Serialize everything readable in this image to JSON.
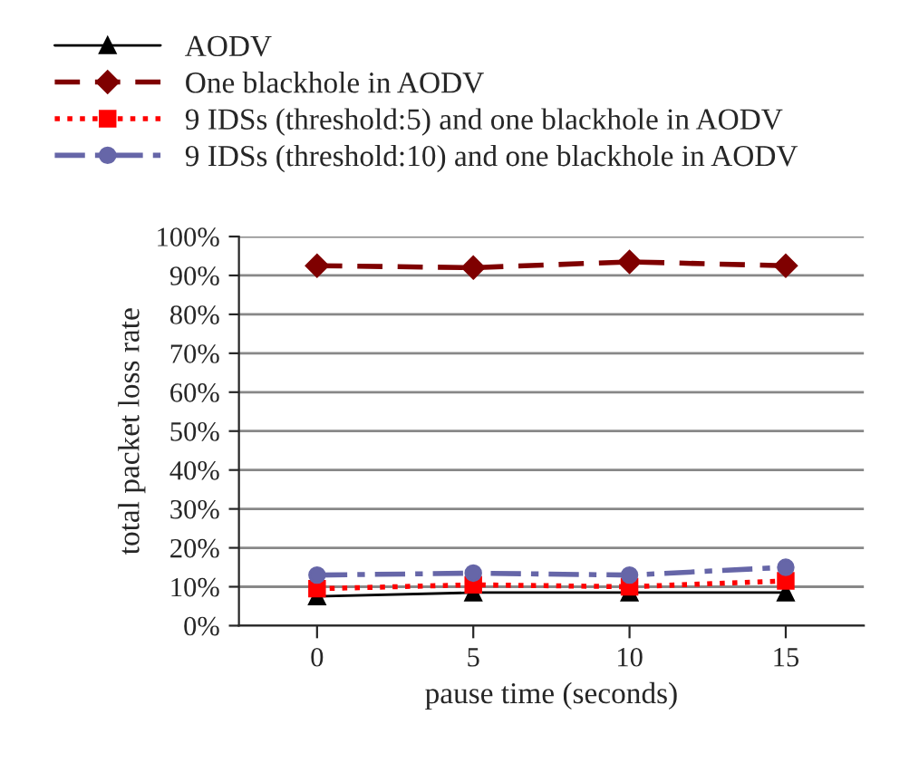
{
  "chart_data": {
    "type": "line",
    "xlabel": "pause time (seconds)",
    "ylabel": "total packet loss rate",
    "categories": [
      "0",
      "5",
      "10",
      "15"
    ],
    "series": [
      {
        "name": "AODV",
        "color": "#000000",
        "marker": "triangle",
        "line_style": "solid",
        "values": [
          7.5,
          8.5,
          8.5,
          8.5
        ]
      },
      {
        "name": "One blackhole in AODV",
        "color": "#7f0000",
        "marker": "diamond",
        "line_style": "dashed",
        "values": [
          92.5,
          92,
          93.5,
          92.5
        ]
      },
      {
        "name": "9 IDSs (threshold:5) and one blackhole in AODV",
        "color": "#ff0000",
        "marker": "square",
        "line_style": "dotted",
        "values": [
          9.5,
          10.5,
          10,
          11.5
        ]
      },
      {
        "name": "9 IDSs (threshold:10) and one blackhole in AODV",
        "color": "#6666a8",
        "marker": "circle",
        "line_style": "dashdot",
        "values": [
          13,
          13.5,
          13,
          15
        ]
      }
    ],
    "ylim": [
      0,
      100
    ],
    "yticks": [
      {
        "value": 0,
        "label": "0%"
      },
      {
        "value": 10,
        "label": "10%"
      },
      {
        "value": 20,
        "label": "20%"
      },
      {
        "value": 30,
        "label": "30%"
      },
      {
        "value": 40,
        "label": "40%"
      },
      {
        "value": 50,
        "label": "50%"
      },
      {
        "value": 60,
        "label": "60%"
      },
      {
        "value": 70,
        "label": "70%"
      },
      {
        "value": 80,
        "label": "80%"
      },
      {
        "value": 90,
        "label": "90%"
      },
      {
        "value": 100,
        "label": "100%"
      }
    ],
    "grid": "y",
    "legend": "top"
  }
}
